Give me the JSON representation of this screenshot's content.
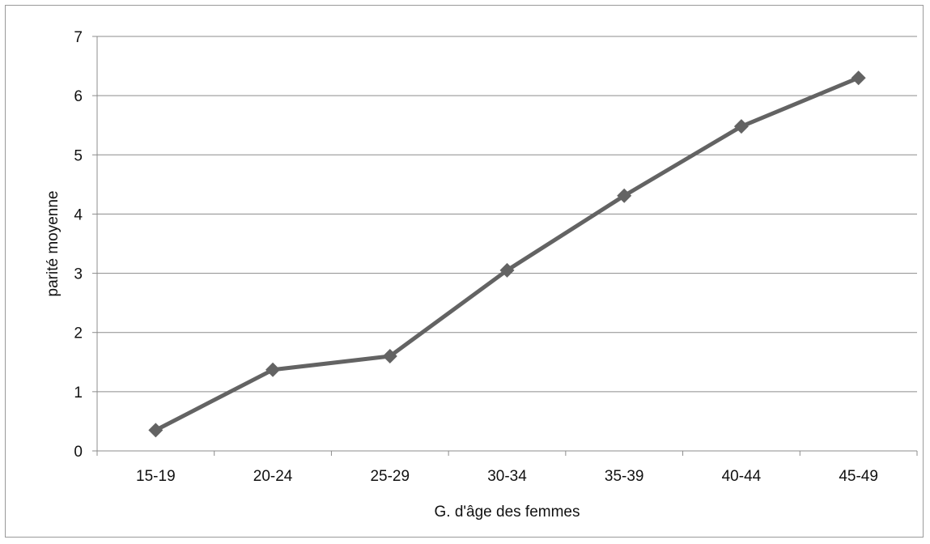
{
  "chart_data": {
    "type": "line",
    "categories": [
      "15-19",
      "20-24",
      "25-29",
      "30-34",
      "35-39",
      "40-44",
      "45-49"
    ],
    "series": [
      {
        "values": [
          0.35,
          1.37,
          1.6,
          3.05,
          4.31,
          5.48,
          6.3
        ]
      }
    ],
    "xlabel": "G. d'âge des femmes",
    "ylabel": "parité moyenne",
    "ylim": [
      0,
      7
    ],
    "yticks": [
      "0",
      "1",
      "2",
      "3",
      "4",
      "5",
      "6",
      "7"
    ],
    "grid": true,
    "legend": "none",
    "colors": {
      "line": "#636363",
      "grid": "#8c8c8c",
      "text": "#111111"
    },
    "marker": "diamond"
  }
}
